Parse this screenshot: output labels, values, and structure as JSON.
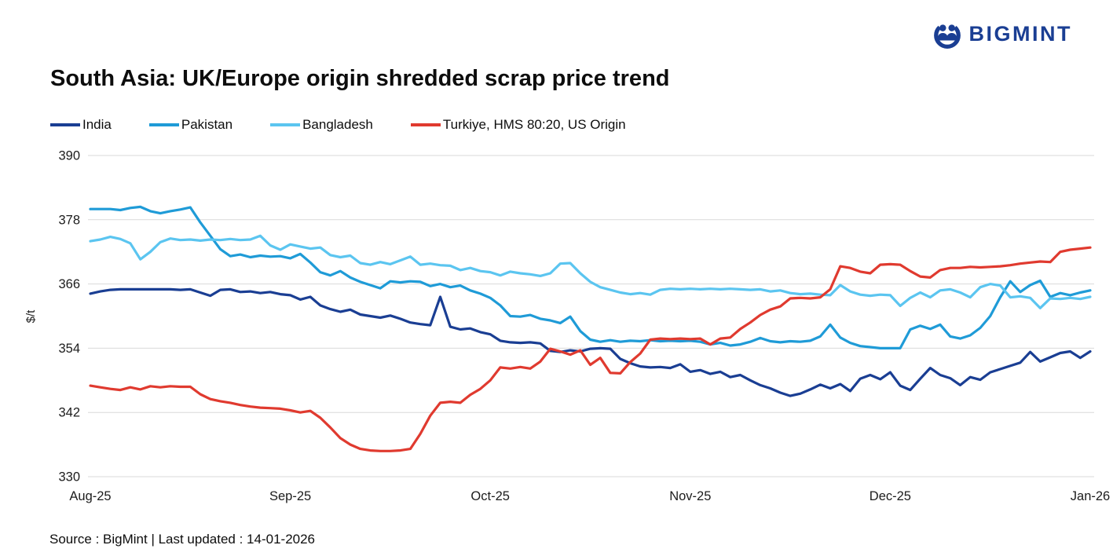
{
  "logo": {
    "text": "BIGMINT",
    "color": "#1a3e93"
  },
  "footer": {
    "source": "Source : BigMint | Last updated : 14-01-2026"
  },
  "chart_data": {
    "type": "line",
    "title": "South Asia: UK/Europe origin shredded scrap price trend",
    "xlabel": "",
    "ylabel": "$/t",
    "ylim": [
      330,
      390
    ],
    "yticks": [
      390,
      378,
      366,
      354,
      342,
      330
    ],
    "x_tick_labels": [
      "Aug-25",
      "Sep-25",
      "Oct-25",
      "Nov-25",
      "Dec-25",
      "Jan-26"
    ],
    "grid": "horizontal",
    "gridline_color": "#d9d9d9",
    "legend_position": "top-left",
    "series": [
      {
        "name": "India",
        "color": "#1a3e93",
        "values": [
          364.2,
          364.6,
          364.9,
          365,
          365,
          365,
          365,
          365,
          365,
          364.9,
          365,
          364.4,
          363.8,
          364.9,
          365,
          364.5,
          364.6,
          364.3,
          364.5,
          364.1,
          363.9,
          363.1,
          363.6,
          362,
          361.3,
          360.8,
          361.2,
          360.3,
          360,
          359.7,
          360.1,
          359.5,
          358.8,
          358.5,
          358.3,
          363.6,
          358,
          357.5,
          357.7,
          357,
          356.6,
          355.4,
          355.1,
          355,
          355.1,
          354.9,
          353.5,
          353.3,
          353.6,
          353.4,
          353.9,
          354,
          353.9,
          352,
          351.2,
          350.6,
          350.4,
          350.5,
          350.3,
          351,
          349.6,
          349.9,
          349.2,
          349.6,
          348.6,
          349,
          348,
          347.1,
          346.5,
          345.7,
          345.1,
          345.5,
          346.3,
          347.2,
          346.5,
          347.3,
          346,
          348.3,
          349,
          348.2,
          349.5,
          347,
          346.2,
          348.3,
          350.3,
          349,
          348.4,
          347.1,
          348.6,
          348.1,
          349.5,
          350.1,
          350.7,
          351.3,
          353.3,
          351.5,
          352.3,
          353.1,
          353.4,
          352.2,
          353.4
        ]
      },
      {
        "name": "Pakistan",
        "color": "#1f9bd7",
        "values": [
          380,
          380,
          380,
          379.8,
          380.2,
          380.4,
          379.6,
          379.2,
          379.6,
          379.9,
          380.3,
          377.5,
          375,
          372.5,
          371.2,
          371.5,
          371,
          371.3,
          371.1,
          371.2,
          370.8,
          371.6,
          370,
          368.2,
          367.6,
          368.4,
          367.2,
          366.4,
          365.8,
          365.2,
          366.5,
          366.3,
          366.5,
          366.4,
          365.6,
          366,
          365.4,
          365.7,
          364.8,
          364.2,
          363.4,
          362,
          360,
          359.9,
          360.2,
          359.5,
          359.2,
          358.7,
          359.9,
          357.2,
          355.6,
          355.2,
          355.5,
          355.2,
          355.4,
          355.3,
          355.5,
          355.3,
          355.4,
          355.3,
          355.4,
          355.2,
          354.7,
          355,
          354.5,
          354.7,
          355.2,
          355.9,
          355.3,
          355.1,
          355.3,
          355.2,
          355.4,
          356.2,
          358.4,
          356,
          355,
          354.4,
          354.2,
          354,
          354,
          354,
          357.5,
          358.2,
          357.6,
          358.4,
          356.2,
          355.8,
          356.4,
          357.8,
          360,
          363.5,
          366.5,
          364.5,
          365.8,
          366.6,
          363.6,
          364.3,
          363.9,
          364.4,
          364.8
        ]
      },
      {
        "name": "Bangladesh",
        "color": "#5bc5f0",
        "values": [
          374,
          374.3,
          374.8,
          374.4,
          373.6,
          370.6,
          372,
          373.8,
          374.5,
          374.2,
          374.3,
          374.1,
          374.3,
          374.2,
          374.4,
          374.2,
          374.3,
          375,
          373.2,
          372.4,
          373.4,
          373,
          372.6,
          372.8,
          371.4,
          371,
          371.3,
          369.9,
          369.6,
          370.1,
          369.7,
          370.4,
          371.1,
          369.6,
          369.8,
          369.5,
          369.4,
          368.6,
          369,
          368.4,
          368.2,
          367.6,
          368.3,
          368,
          367.8,
          367.5,
          368,
          369.8,
          369.9,
          368,
          366.4,
          365.4,
          364.9,
          364.4,
          364.1,
          364.3,
          364,
          364.9,
          365.1,
          365,
          365.1,
          365,
          365.1,
          365,
          365.1,
          365,
          364.9,
          365,
          364.6,
          364.8,
          364.3,
          364.1,
          364.2,
          364,
          363.9,
          365.8,
          364.6,
          364,
          363.8,
          364,
          363.9,
          361.9,
          363.4,
          364.4,
          363.5,
          364.8,
          365,
          364.4,
          363.5,
          365.4,
          366,
          365.7,
          363.5,
          363.7,
          363.4,
          361.5,
          363.3,
          363.2,
          363.4,
          363.2,
          363.6
        ]
      },
      {
        "name": "Turkiye, HMS 80:20, US Origin",
        "color": "#e03a2f",
        "values": [
          347,
          346.7,
          346.4,
          346.2,
          346.7,
          346.3,
          346.9,
          346.7,
          346.9,
          346.8,
          346.8,
          345.4,
          344.5,
          344.1,
          343.8,
          343.4,
          343.1,
          342.9,
          342.8,
          342.7,
          342.4,
          342,
          342.3,
          341,
          339.2,
          337.2,
          336,
          335.2,
          334.9,
          334.8,
          334.8,
          334.9,
          335.2,
          338,
          341.4,
          343.8,
          344,
          343.8,
          345.3,
          346.4,
          348,
          350.4,
          350.2,
          350.5,
          350.2,
          351.5,
          353.9,
          353.4,
          352.8,
          353.6,
          350.9,
          352.2,
          349.4,
          349.3,
          351.4,
          353,
          355.6,
          355.8,
          355.7,
          355.8,
          355.7,
          355.8,
          354.7,
          355.8,
          356,
          357.6,
          358.8,
          360.2,
          361.2,
          361.8,
          363.3,
          363.4,
          363.3,
          363.5,
          365,
          369.3,
          369,
          368.3,
          368,
          369.6,
          369.7,
          369.6,
          368.4,
          367.4,
          367.2,
          368.6,
          369,
          369,
          369.2,
          369.1,
          369.2,
          369.3,
          369.5,
          369.8,
          370,
          370.2,
          370.1,
          372,
          372.4,
          372.6,
          372.8
        ]
      }
    ]
  }
}
